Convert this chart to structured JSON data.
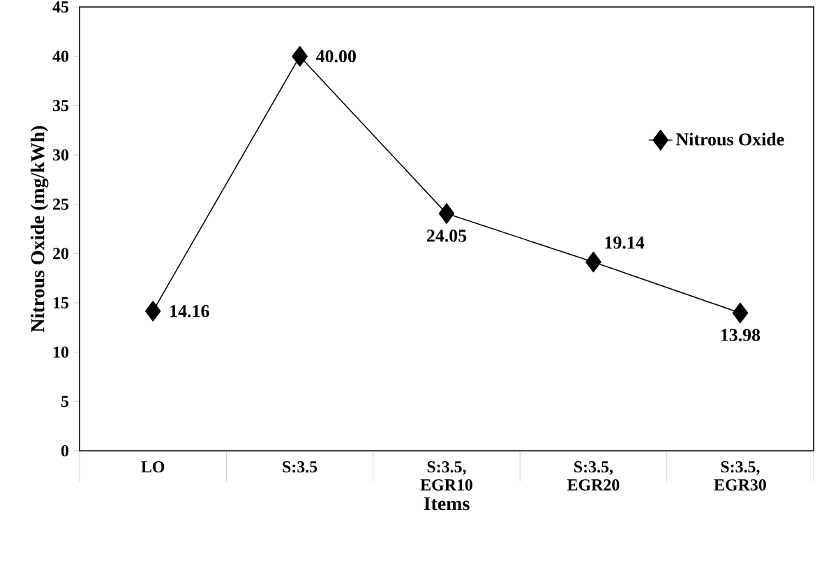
{
  "chart_data": {
    "type": "line",
    "xlabel": "Items",
    "ylabel": "Nitrous Oxide (mg/kWh)",
    "categories": [
      "LO",
      "S:3.5",
      "S:3.5, EGR10",
      "S:3.5, EGR20",
      "S:3.5, EGR30"
    ],
    "series": [
      {
        "name": "Nitrous Oxide",
        "color": "#000000",
        "values": [
          14.16,
          40.0,
          24.05,
          19.14,
          13.98
        ],
        "value_labels": [
          "14.16",
          "40.00",
          "24.05",
          "19.14",
          "13.98"
        ]
      }
    ],
    "ylim": [
      0,
      45
    ],
    "yticks": [
      0,
      5,
      10,
      15,
      20,
      25,
      30,
      35,
      40,
      45
    ],
    "grid": false,
    "legend": "right",
    "marker": "diamond",
    "line_style": "solid"
  }
}
